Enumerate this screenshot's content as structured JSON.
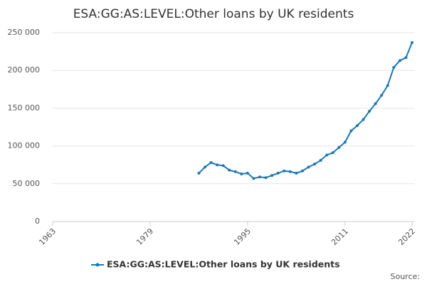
{
  "chart_data": {
    "type": "line",
    "title": "ESA:GG:AS:LEVEL:Other loans by UK residents",
    "source": "Source:",
    "x": [
      1987,
      1988,
      1989,
      1990,
      1991,
      1992,
      1993,
      1994,
      1995,
      1996,
      1997,
      1998,
      1999,
      2000,
      2001,
      2002,
      2003,
      2004,
      2005,
      2006,
      2007,
      2008,
      2009,
      2010,
      2011,
      2012,
      2013,
      2014,
      2015,
      2016,
      2017,
      2018,
      2019,
      2020,
      2021,
      2022
    ],
    "series": [
      {
        "name": "ESA:GG:AS:LEVEL:Other loans by UK residents",
        "color": "#1f77b4",
        "values": [
          64000,
          72000,
          78000,
          75000,
          74000,
          68000,
          66000,
          63000,
          64000,
          57000,
          59000,
          58000,
          61000,
          64000,
          67000,
          66000,
          64000,
          67000,
          72000,
          76000,
          81000,
          88000,
          91000,
          98000,
          105000,
          120000,
          127000,
          135000,
          146000,
          156000,
          167000,
          180000,
          204000,
          213000,
          217000,
          237000
        ]
      }
    ],
    "xlim": [
      1963,
      2022
    ],
    "xticks": [
      1963,
      1979,
      1995,
      2011,
      2022
    ],
    "ylim": [
      0,
      250000
    ],
    "yticks": [
      0,
      {
        "value": 50000,
        "label": "50 000"
      },
      {
        "value": 100000,
        "label": "100 000"
      },
      {
        "value": 150000,
        "label": "150 000"
      },
      {
        "value": 200000,
        "label": "200 000"
      },
      {
        "value": 250000,
        "label": "250 000"
      }
    ],
    "grid": true
  }
}
